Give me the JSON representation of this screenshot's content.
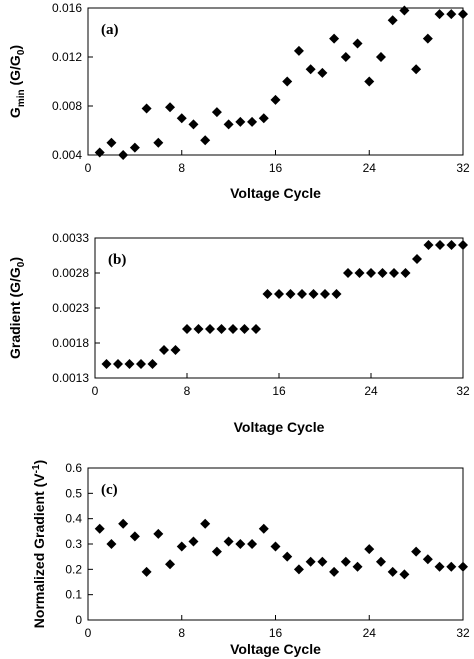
{
  "chart_data": [
    {
      "type": "scatter",
      "panel_label": "(a)",
      "xlabel": "Voltage Cycle",
      "ylabel_main": "G",
      "ylabel_sub": "min",
      "ylabel_tail": " (G/G",
      "ylabel_tail_sub": "0",
      "ylabel_end": ")",
      "xlim": [
        0,
        32
      ],
      "ylim": [
        0.004,
        0.016
      ],
      "xticks": [
        "0",
        "8",
        "16",
        "24",
        "32"
      ],
      "yticks": [
        "0.004",
        "0.008",
        "0.012",
        "0.016"
      ],
      "grid": false,
      "marker": "diamond",
      "series": [
        {
          "x": [
            1,
            2,
            3,
            4,
            5,
            6,
            7,
            8,
            9,
            10,
            11,
            12,
            13,
            14,
            15,
            16,
            17,
            18,
            19,
            20,
            21,
            22,
            23,
            24,
            25,
            26,
            27,
            28,
            29,
            30,
            31,
            32
          ],
          "y": [
            0.0042,
            0.005,
            0.004,
            0.0046,
            0.0078,
            0.005,
            0.0079,
            0.007,
            0.0065,
            0.0052,
            0.0075,
            0.0065,
            0.0067,
            0.0067,
            0.007,
            0.0085,
            0.01,
            0.0125,
            0.011,
            0.0107,
            0.0135,
            0.012,
            0.0131,
            0.01,
            0.012,
            0.015,
            0.0158,
            0.011,
            0.0135,
            0.0155,
            0.0155,
            0.0155
          ]
        }
      ]
    },
    {
      "type": "scatter",
      "panel_label": "(b)",
      "xlabel": "Voltage Cycle",
      "ylabel_main": "Gradient (G/G",
      "ylabel_sub": "0",
      "ylabel_end": ")",
      "xlim": [
        0,
        32
      ],
      "ylim": [
        0.0013,
        0.0033
      ],
      "xticks": [
        "0",
        "8",
        "16",
        "24",
        "32"
      ],
      "yticks": [
        "0.0013",
        "0.0018",
        "0.0023",
        "0.0028",
        "0.0033"
      ],
      "grid": false,
      "marker": "diamond",
      "series": [
        {
          "x": [
            1,
            2,
            3,
            4,
            5,
            6,
            7,
            8,
            9,
            10,
            11,
            12,
            13,
            14,
            15,
            16,
            17,
            18,
            19,
            20,
            21,
            22,
            23,
            24,
            25,
            26,
            27,
            28,
            29,
            30,
            31,
            32
          ],
          "y": [
            0.0015,
            0.0015,
            0.0015,
            0.0015,
            0.0015,
            0.0017,
            0.0017,
            0.002,
            0.002,
            0.002,
            0.002,
            0.002,
            0.002,
            0.002,
            0.0025,
            0.0025,
            0.0025,
            0.0025,
            0.0025,
            0.0025,
            0.0025,
            0.0028,
            0.0028,
            0.0028,
            0.0028,
            0.0028,
            0.0028,
            0.003,
            0.0032,
            0.0032,
            0.0032,
            0.0032
          ]
        }
      ]
    },
    {
      "type": "scatter",
      "panel_label": "(c)",
      "xlabel": "Voltage Cycle",
      "ylabel_main": "Normalized Gradient (V",
      "ylabel_sup": "-1",
      "ylabel_end": ")",
      "xlim": [
        0,
        32
      ],
      "ylim": [
        0,
        0.6
      ],
      "xticks": [
        "0",
        "8",
        "16",
        "24",
        "32"
      ],
      "yticks": [
        "0",
        "0.1",
        "0.2",
        "0.3",
        "0.4",
        "0.5",
        "0.6"
      ],
      "grid": false,
      "marker": "diamond",
      "series": [
        {
          "x": [
            1,
            2,
            3,
            4,
            5,
            6,
            7,
            8,
            9,
            10,
            11,
            12,
            13,
            14,
            15,
            16,
            17,
            18,
            19,
            20,
            21,
            22,
            23,
            24,
            25,
            26,
            27,
            28,
            29,
            30,
            31,
            32
          ],
          "y": [
            0.36,
            0.3,
            0.38,
            0.33,
            0.19,
            0.34,
            0.22,
            0.29,
            0.31,
            0.38,
            0.27,
            0.31,
            0.3,
            0.3,
            0.36,
            0.29,
            0.25,
            0.2,
            0.23,
            0.23,
            0.19,
            0.23,
            0.21,
            0.28,
            0.23,
            0.19,
            0.18,
            0.27,
            0.24,
            0.21,
            0.21,
            0.21
          ]
        }
      ]
    }
  ]
}
